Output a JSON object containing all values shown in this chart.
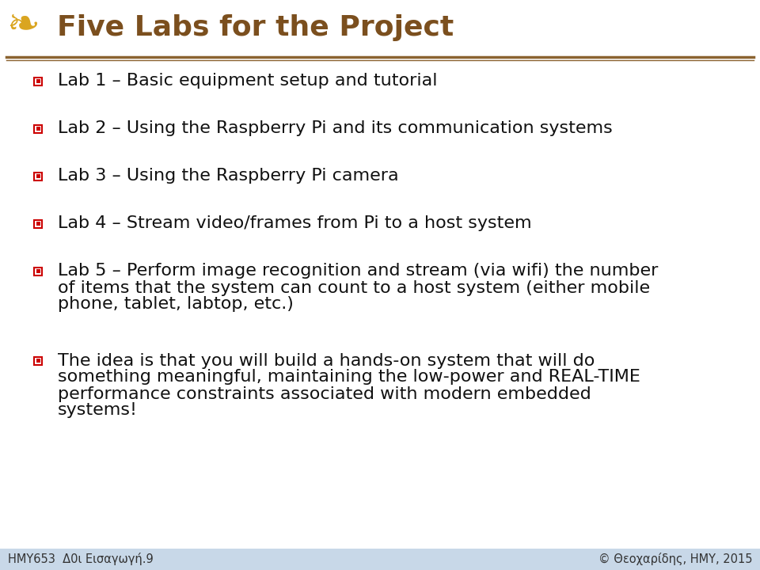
{
  "title": "Five Labs for the Project",
  "title_color": "#7B4F1E",
  "title_fontsize": 26,
  "title_underline_color": "#8B6330",
  "background_color": "#FFFFFF",
  "bullet_color": "#CC0000",
  "text_color": "#111111",
  "footer_bg": "#C8D8E8",
  "footer_left": "HMY653  Δ0ι Εισαγωγή.9",
  "footer_right": "© Θεοχαρίδης, HMY, 2015",
  "bullet_items": [
    "Lab 1 – Basic equipment setup and tutorial",
    "Lab 2 – Using the Raspberry Pi and its communication systems",
    "Lab 3 – Using the Raspberry Pi camera",
    "Lab 4 – Stream video/frames from Pi to a host system",
    "Lab 5 – Perform image recognition and stream (via wifi) the number\nof items that the system can count to a host system (either mobile\nphone, tablet, labtop, etc.)"
  ],
  "extra_item": "The idea is that you will build a hands-on system that will do\nsomething meaningful, maintaining the low-power and REAL-TIME\nperformance constraints associated with modern embedded\nsystems!",
  "main_fontsize": 16,
  "footer_fontsize": 10.5
}
